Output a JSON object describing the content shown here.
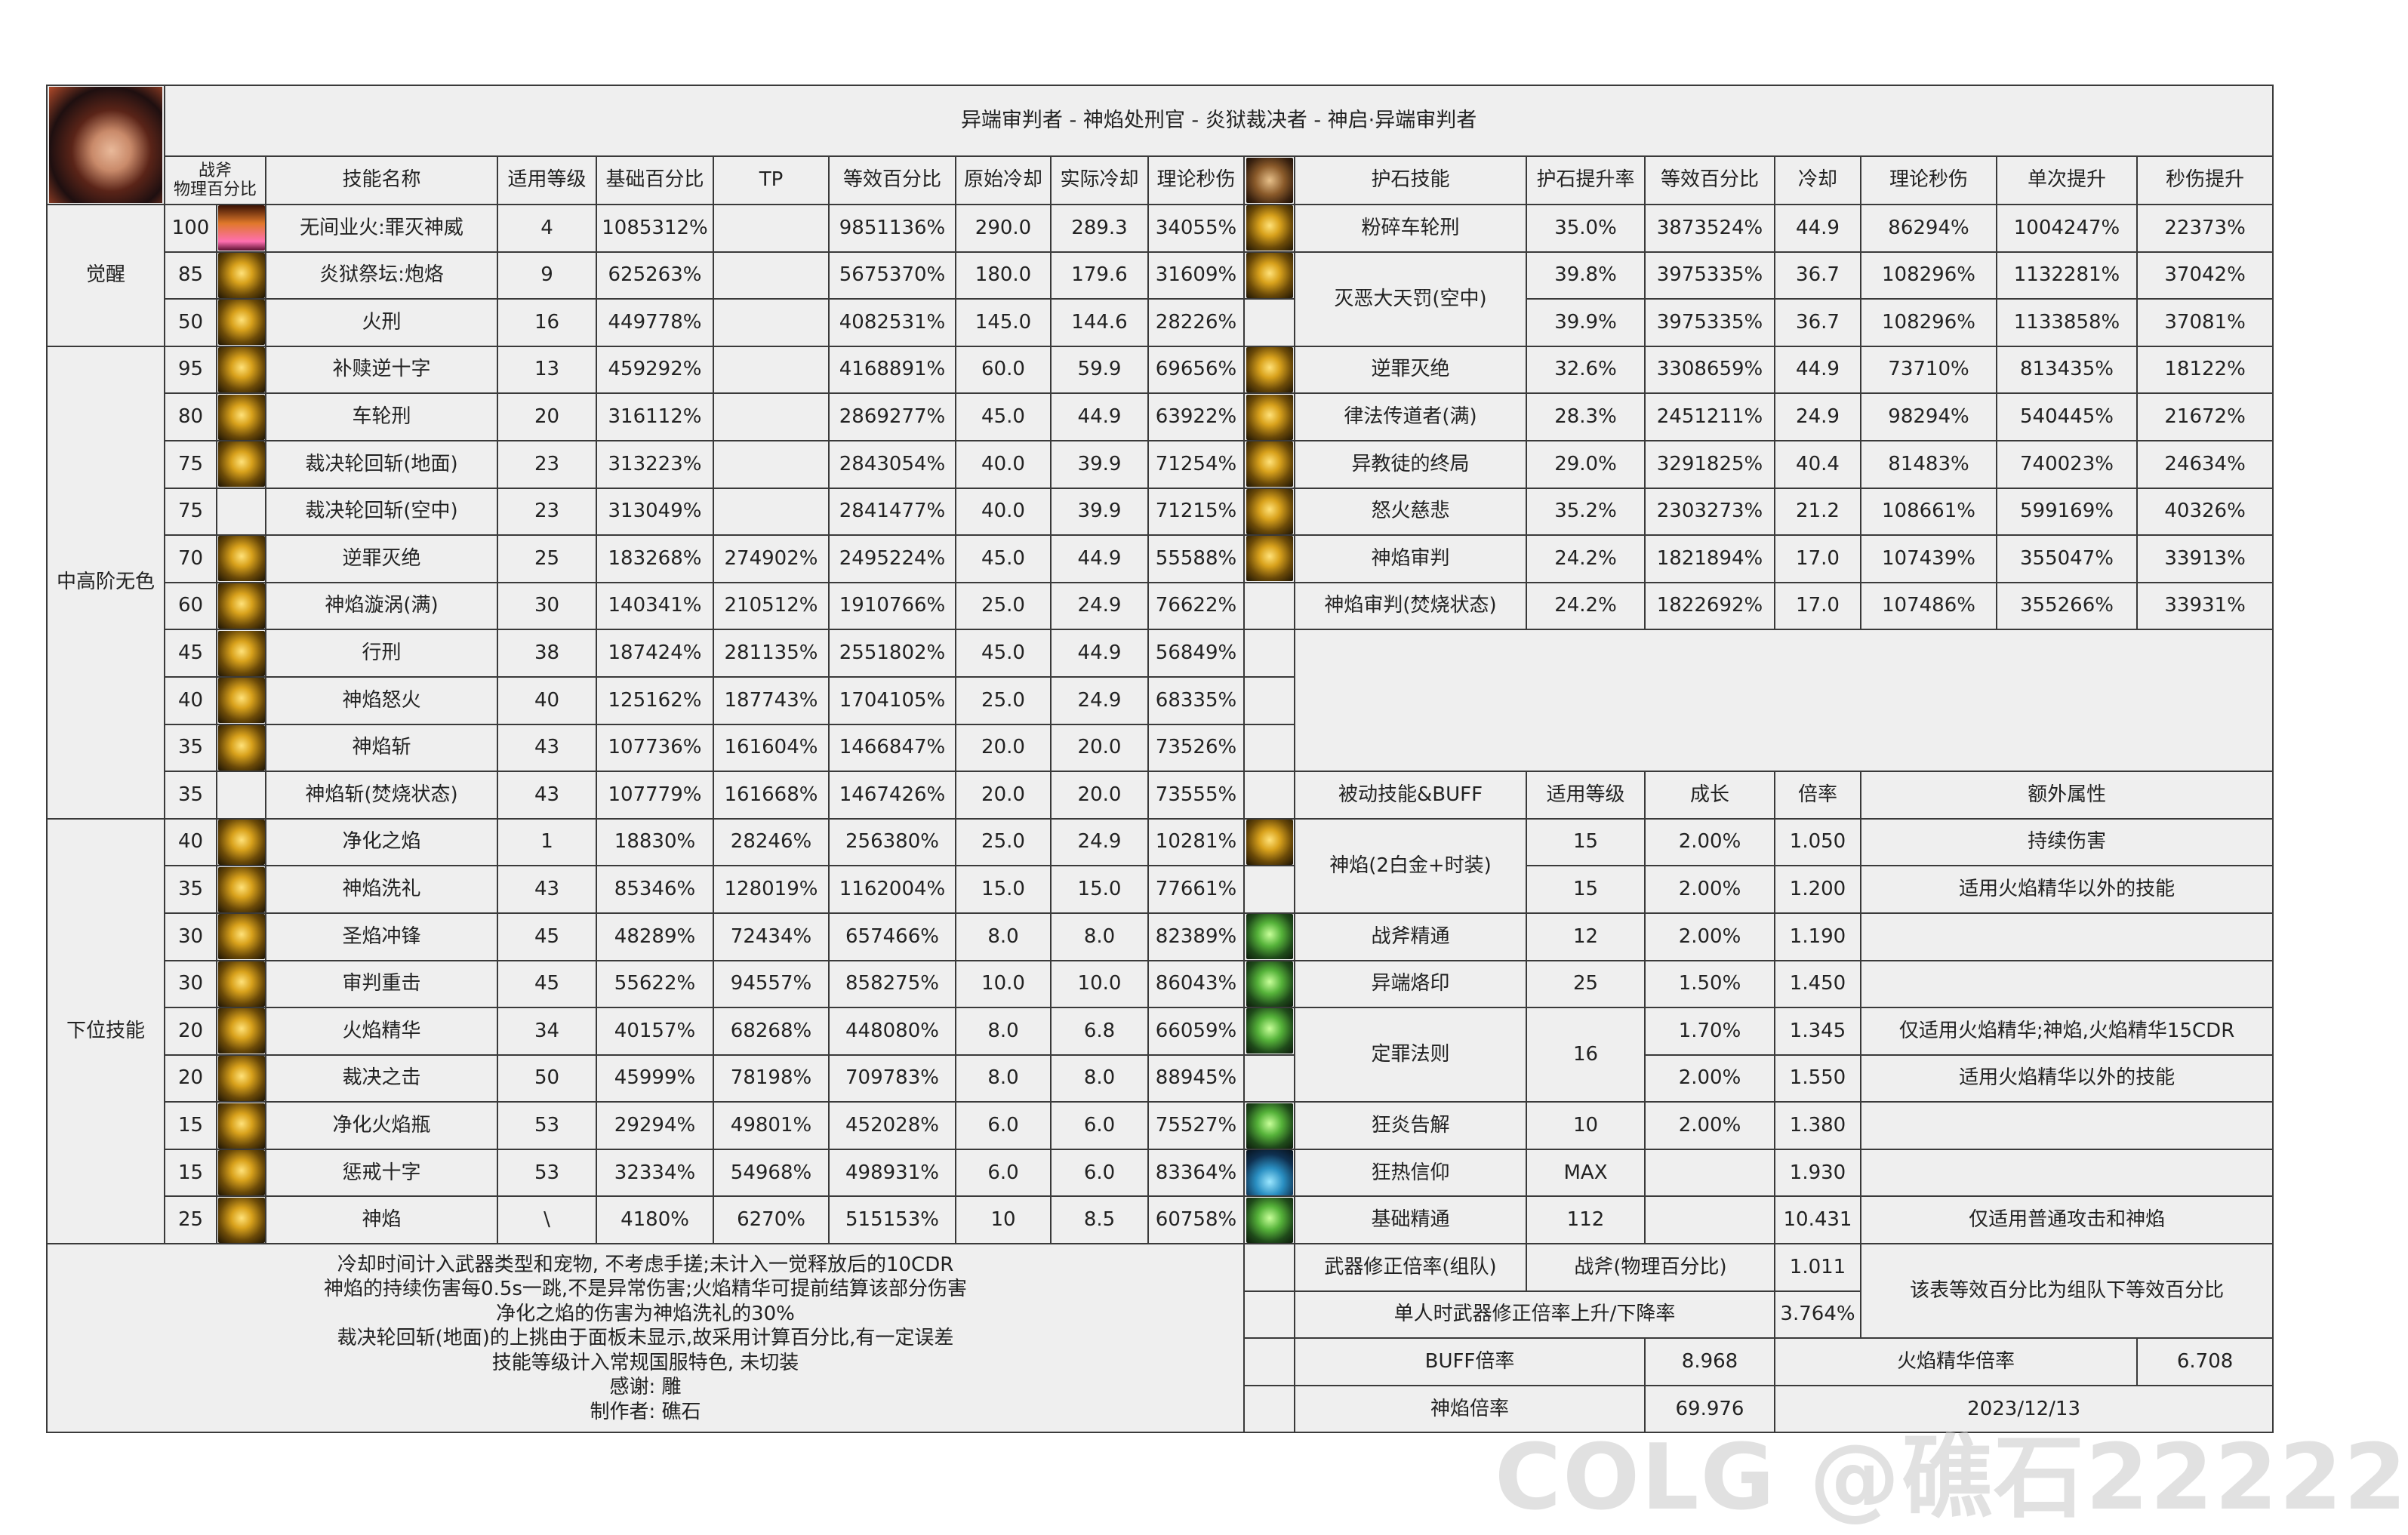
{
  "title": "异端审判者 - 神焰处刑官 - 炎狱裁决者 - 神启·异端审判者",
  "left_headers": [
    "战斧\n物理百分比",
    "技能名称",
    "适用等级",
    "基础百分比",
    "TP",
    "等效百分比",
    "原始冷却",
    "实际冷却",
    "理论秒伤"
  ],
  "right_headers": [
    "护石技能",
    "护石提升率",
    "等效百分比",
    "冷却",
    "理论秒伤",
    "单次提升",
    "秒伤提升"
  ],
  "categories": [
    "觉醒",
    "中高阶无色",
    "下位技能"
  ],
  "skills": [
    {
      "lv": "100",
      "name": "无间业火:罪灭神威",
      "req": "4",
      "base": "1085312%",
      "tp": "",
      "eq": "9851136%",
      "cd": "290.0",
      "rcd": "289.3",
      "dps": "34055%",
      "icon": "awakening-flame-icon",
      "tone": "fire"
    },
    {
      "lv": "85",
      "name": "炎狱祭坛:炮烙",
      "req": "9",
      "base": "625263%",
      "tp": "",
      "eq": "5675370%",
      "cd": "180.0",
      "rcd": "179.6",
      "dps": "31609%",
      "icon": "altar-icon",
      "tone": "gold"
    },
    {
      "lv": "50",
      "name": "火刑",
      "req": "16",
      "base": "449778%",
      "tp": "",
      "eq": "4082531%",
      "cd": "145.0",
      "rcd": "144.6",
      "dps": "28226%",
      "icon": "cross-fire-icon",
      "tone": "gold"
    },
    {
      "lv": "95",
      "name": "补赎逆十字",
      "req": "13",
      "base": "459292%",
      "tp": "",
      "eq": "4168891%",
      "cd": "60.0",
      "rcd": "59.9",
      "dps": "69656%",
      "icon": "inverted-cross-icon",
      "tone": "gold"
    },
    {
      "lv": "80",
      "name": "车轮刑",
      "req": "20",
      "base": "316112%",
      "tp": "",
      "eq": "2869277%",
      "cd": "45.0",
      "rcd": "44.9",
      "dps": "63922%",
      "icon": "wheel-icon",
      "tone": "gold"
    },
    {
      "lv": "75",
      "name": "裁决轮回斩(地面)",
      "req": "23",
      "base": "313223%",
      "tp": "",
      "eq": "2843054%",
      "cd": "40.0",
      "rcd": "39.9",
      "dps": "71254%",
      "icon": "vortex-icon",
      "tone": "gold"
    },
    {
      "lv": "75",
      "name": "裁决轮回斩(空中)",
      "req": "23",
      "base": "313049%",
      "tp": "",
      "eq": "2841477%",
      "cd": "40.0",
      "rcd": "39.9",
      "dps": "71215%",
      "icon": "",
      "tone": ""
    },
    {
      "lv": "70",
      "name": "逆罪灭绝",
      "req": "25",
      "base": "183268%",
      "tp": "274902%",
      "eq": "2495224%",
      "cd": "45.0",
      "rcd": "44.9",
      "dps": "55588%",
      "icon": "flame-swirl-icon",
      "tone": "gold"
    },
    {
      "lv": "60",
      "name": "神焰漩涡(满)",
      "req": "30",
      "base": "140341%",
      "tp": "210512%",
      "eq": "1910766%",
      "cd": "25.0",
      "rcd": "24.9",
      "dps": "76622%",
      "icon": "flame-vortex-icon",
      "tone": "gold"
    },
    {
      "lv": "45",
      "name": "行刑",
      "req": "38",
      "base": "187424%",
      "tp": "281135%",
      "eq": "2551802%",
      "cd": "45.0",
      "rcd": "44.9",
      "dps": "56849%",
      "icon": "guillotine-icon",
      "tone": "gold"
    },
    {
      "lv": "40",
      "name": "神焰怒火",
      "req": "40",
      "base": "125162%",
      "tp": "187743%",
      "eq": "1704105%",
      "cd": "25.0",
      "rcd": "24.9",
      "dps": "68335%",
      "icon": "flame-spiral-icon",
      "tone": "gold"
    },
    {
      "lv": "35",
      "name": "神焰斩",
      "req": "43",
      "base": "107736%",
      "tp": "161604%",
      "eq": "1466847%",
      "cd": "20.0",
      "rcd": "20.0",
      "dps": "73526%",
      "icon": "flame-slash-icon",
      "tone": "gold"
    },
    {
      "lv": "35",
      "name": "神焰斩(焚烧状态)",
      "req": "43",
      "base": "107779%",
      "tp": "161668%",
      "eq": "1467426%",
      "cd": "20.0",
      "rcd": "20.0",
      "dps": "73555%",
      "icon": "",
      "tone": ""
    },
    {
      "lv": "40",
      "name": "净化之焰",
      "req": "1",
      "base": "18830%",
      "tp": "28246%",
      "eq": "256380%",
      "cd": "25.0",
      "rcd": "24.9",
      "dps": "10281%",
      "icon": "purify-flame-icon",
      "tone": "gold"
    },
    {
      "lv": "35",
      "name": "神焰洗礼",
      "req": "43",
      "base": "85346%",
      "tp": "128019%",
      "eq": "1162004%",
      "cd": "15.0",
      "rcd": "15.0",
      "dps": "77661%",
      "icon": "baptism-icon",
      "tone": "gold"
    },
    {
      "lv": "30",
      "name": "圣焰冲锋",
      "req": "45",
      "base": "48289%",
      "tp": "72434%",
      "eq": "657466%",
      "cd": "8.0",
      "rcd": "8.0",
      "dps": "82389%",
      "icon": "charge-icon",
      "tone": "gold"
    },
    {
      "lv": "30",
      "name": "审判重击",
      "req": "45",
      "base": "55622%",
      "tp": "94557%",
      "eq": "858275%",
      "cd": "10.0",
      "rcd": "10.0",
      "dps": "86043%",
      "icon": "smash-icon",
      "tone": "gold"
    },
    {
      "lv": "20",
      "name": "火焰精华",
      "req": "34",
      "base": "40157%",
      "tp": "68268%",
      "eq": "448080%",
      "cd": "8.0",
      "rcd": "6.8",
      "dps": "66059%",
      "icon": "flame-essence-icon",
      "tone": "gold"
    },
    {
      "lv": "20",
      "name": "裁决之击",
      "req": "50",
      "base": "45999%",
      "tp": "78198%",
      "eq": "709783%",
      "cd": "8.0",
      "rcd": "8.0",
      "dps": "88945%",
      "icon": "strike-icon",
      "tone": "gold"
    },
    {
      "lv": "15",
      "name": "净化火焰瓶",
      "req": "53",
      "base": "29294%",
      "tp": "49801%",
      "eq": "452028%",
      "cd": "6.0",
      "rcd": "6.0",
      "dps": "75527%",
      "icon": "flame-bottle-icon",
      "tone": "gold"
    },
    {
      "lv": "15",
      "name": "惩戒十字",
      "req": "53",
      "base": "32334%",
      "tp": "54968%",
      "eq": "498931%",
      "cd": "6.0",
      "rcd": "6.0",
      "dps": "83364%",
      "icon": "punish-cross-icon",
      "tone": "gold"
    },
    {
      "lv": "25",
      "name": "神焰",
      "req": "\\",
      "base": "4180%",
      "tp": "6270%",
      "eq": "515153%",
      "cd": "10",
      "rcd": "8.5",
      "dps": "60758%",
      "icon": "holy-flame-icon",
      "tone": "gold"
    }
  ],
  "talismans": [
    {
      "name": "粉碎车轮刑",
      "icon": "wheel-icon",
      "tone": "gold",
      "rows": [
        {
          "rate": "35.0%",
          "eq": "3873524%",
          "cd": "44.9",
          "dps": "86294%",
          "single": "1004247%",
          "dps_up": "22373%"
        }
      ]
    },
    {
      "name": "灭恶大天罚(空中)",
      "icon": "vortex-icon",
      "tone": "gold",
      "rows": [
        {
          "rate": "39.8%",
          "eq": "3975335%",
          "cd": "36.7",
          "dps": "108296%",
          "single": "1132281%",
          "dps_up": "37042%"
        },
        {
          "rate": "39.9%",
          "eq": "3975335%",
          "cd": "36.7",
          "dps": "108296%",
          "single": "1133858%",
          "dps_up": "37081%"
        }
      ]
    },
    {
      "name": "逆罪灭绝",
      "icon": "flame-swirl-icon",
      "tone": "gold",
      "rows": [
        {
          "rate": "32.6%",
          "eq": "3308659%",
          "cd": "44.9",
          "dps": "73710%",
          "single": "813435%",
          "dps_up": "18122%"
        }
      ]
    },
    {
      "name": "律法传道者(满)",
      "icon": "flame-vortex-icon",
      "tone": "gold",
      "rows": [
        {
          "rate": "28.3%",
          "eq": "2451211%",
          "cd": "24.9",
          "dps": "98294%",
          "single": "540445%",
          "dps_up": "21672%"
        }
      ]
    },
    {
      "name": "异教徒的终局",
      "icon": "guillotine-icon",
      "tone": "gold",
      "rows": [
        {
          "rate": "29.0%",
          "eq": "3291825%",
          "cd": "40.4",
          "dps": "81483%",
          "single": "740023%",
          "dps_up": "24634%"
        }
      ]
    },
    {
      "name": "怒火慈悲",
      "icon": "flame-spiral-icon",
      "tone": "gold",
      "rows": [
        {
          "rate": "35.2%",
          "eq": "2303273%",
          "cd": "21.2",
          "dps": "108661%",
          "single": "599169%",
          "dps_up": "40326%"
        }
      ]
    },
    {
      "name": "神焰审判",
      "icon": "flame-slash-icon",
      "tone": "gold",
      "rows": [
        {
          "rate": "24.2%",
          "eq": "1821894%",
          "cd": "17.0",
          "dps": "107439%",
          "single": "355047%",
          "dps_up": "33913%"
        }
      ]
    },
    {
      "name": "神焰审判(焚烧状态)",
      "icon": "",
      "tone": "",
      "rows": [
        {
          "rate": "24.2%",
          "eq": "1822692%",
          "cd": "17.0",
          "dps": "107486%",
          "single": "355266%",
          "dps_up": "33931%"
        }
      ]
    }
  ],
  "passive_headers": [
    "被动技能&BUFF",
    "适用等级",
    "成长",
    "倍率",
    "额外属性"
  ],
  "passives": [
    {
      "name": "神焰(2白金+时装)",
      "icon": "holy-flame-icon",
      "tone": "gold",
      "rows": [
        {
          "lv": "15",
          "growth": "2.00%",
          "mult": "1.050",
          "extra": "持续伤害"
        },
        {
          "lv": "15",
          "growth": "2.00%",
          "mult": "1.200",
          "extra": "适用火焰精华以外的技能"
        }
      ]
    },
    {
      "name": "战斧精通",
      "icon": "battle-axe-icon",
      "tone": "green",
      "rows": [
        {
          "lv": "12",
          "growth": "2.00%",
          "mult": "1.190",
          "extra": ""
        }
      ]
    },
    {
      "name": "异端烙印",
      "icon": "brand-icon",
      "tone": "green",
      "rows": [
        {
          "lv": "25",
          "growth": "1.50%",
          "mult": "1.450",
          "extra": ""
        }
      ]
    },
    {
      "name": "定罪法则",
      "icon": "law-book-icon",
      "tone": "green",
      "lv": "16",
      "rows": [
        {
          "growth": "1.70%",
          "mult": "1.345",
          "extra": "仅适用火焰精华;神焰,火焰精华15CDR"
        },
        {
          "growth": "2.00%",
          "mult": "1.550",
          "extra": "适用火焰精华以外的技能"
        }
      ]
    },
    {
      "name": "狂炎告解",
      "icon": "confession-icon",
      "tone": "green",
      "rows": [
        {
          "lv": "10",
          "growth": "2.00%",
          "mult": "1.380",
          "extra": ""
        }
      ]
    },
    {
      "name": "狂热信仰",
      "icon": "faith-icon",
      "tone": "blue",
      "rows": [
        {
          "lv": "MAX",
          "growth": "",
          "mult": "1.930",
          "extra": ""
        }
      ]
    },
    {
      "name": "基础精通",
      "icon": "mastery-icon",
      "tone": "green",
      "rows": [
        {
          "lv": "112",
          "growth": "",
          "mult": "10.431",
          "extra": "仅适用普通攻击和神焰"
        }
      ]
    }
  ],
  "notes": [
    "冷却时间计入武器类型和宠物, 不考虑手搓;未计入一觉释放后的10CDR",
    "神焰的持续伤害每0.5s一跳,不是异常伤害;火焰精华可提前结算该部分伤害",
    "净化之焰的伤害为神焰洗礼的30%",
    "裁决轮回斩(地面)的上挑由于面板未显示,故采用计算百分比,有一定误差",
    "技能等级计入常规国服特色, 未切装",
    "感谢: 雕",
    "制作者: 礁石"
  ],
  "summary": {
    "weapon_label": "武器修正倍率(组队)",
    "weapon_type": "战斧(物理百分比)",
    "weapon_value": "1.011",
    "team_note": "该表等效百分比为组队下等效百分比",
    "solo_label": "单人时武器修正倍率上升/下降率",
    "solo_value": "3.764%",
    "buff_label": "BUFF倍率",
    "buff_value": "8.968",
    "essence_label": "火焰精华倍率",
    "essence_value": "6.708",
    "flame_label": "神焰倍率",
    "flame_value": "69.976",
    "date": "2023/12/13"
  },
  "watermark": "COLG @礁石22222"
}
